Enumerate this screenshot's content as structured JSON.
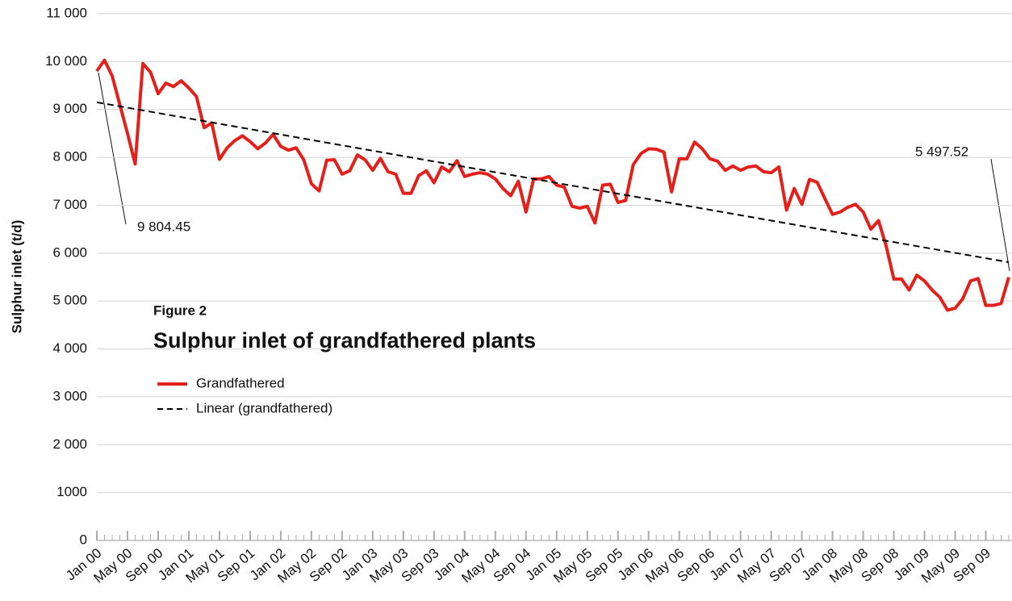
{
  "chart_data": {
    "type": "line",
    "title": "Sulphur inlet of grandfathered plants",
    "subtitle": "Figure 2",
    "y_label": "Sulphur inlet (t/d)",
    "categories": [
      "Jan 00",
      null,
      null,
      null,
      "May 00",
      null,
      null,
      null,
      "Sep 00",
      null,
      null,
      null,
      "Jan 01",
      null,
      null,
      null,
      "May 01",
      null,
      null,
      null,
      "Sep 01",
      null,
      null,
      null,
      "Jan 02",
      null,
      null,
      null,
      "May 02",
      null,
      null,
      null,
      "Sep 02",
      null,
      null,
      null,
      "Jan 03",
      null,
      null,
      null,
      "May 03",
      null,
      null,
      null,
      "Sep 03",
      null,
      null,
      null,
      "Jan 04",
      null,
      null,
      null,
      "May 04",
      null,
      null,
      null,
      "Sep 04",
      null,
      null,
      null,
      "Jan 05",
      null,
      null,
      null,
      "May 05",
      null,
      null,
      null,
      "Sep 05",
      null,
      null,
      null,
      "Jan 06",
      null,
      null,
      null,
      "May 06",
      null,
      null,
      null,
      "Sep 06",
      null,
      null,
      null,
      "Jan 07",
      null,
      null,
      null,
      "May 07",
      null,
      null,
      null,
      "Sep 07",
      null,
      null,
      null,
      "Jan 08",
      null,
      null,
      null,
      "May 08",
      null,
      null,
      null,
      "Sep 08",
      null,
      null,
      null,
      "Jan 09",
      null,
      null,
      null,
      "May 09",
      null,
      null,
      null,
      "Sep 09",
      null,
      null,
      null
    ],
    "series": [
      {
        "name": "Grandfathered",
        "color": "#e3201b",
        "values": [
          9804.45,
          10030,
          9700,
          9100,
          8500,
          7860,
          9960,
          9780,
          9330,
          9550,
          9480,
          9600,
          9450,
          9270,
          8620,
          8720,
          7960,
          8200,
          8350,
          8450,
          8330,
          8180,
          8300,
          8480,
          8230,
          8150,
          8200,
          7950,
          7450,
          7300,
          7940,
          7950,
          7650,
          7720,
          8050,
          7950,
          7730,
          7980,
          7700,
          7650,
          7250,
          7250,
          7620,
          7720,
          7470,
          7800,
          7700,
          7930,
          7600,
          7650,
          7680,
          7650,
          7550,
          7350,
          7200,
          7500,
          6860,
          7550,
          7550,
          7600,
          7420,
          7380,
          6980,
          6940,
          6980,
          6630,
          7420,
          7440,
          7060,
          7100,
          7850,
          8080,
          8180,
          8170,
          8110,
          7280,
          7970,
          7970,
          8320,
          8180,
          7970,
          7920,
          7730,
          7820,
          7730,
          7800,
          7820,
          7700,
          7680,
          7800,
          6900,
          7350,
          7020,
          7540,
          7480,
          7140,
          6810,
          6860,
          6960,
          7020,
          6860,
          6500,
          6680,
          6150,
          5460,
          5460,
          5230,
          5540,
          5420,
          5230,
          5080,
          4810,
          4850,
          5050,
          5420,
          5470,
          4910,
          4910,
          4950,
          5497.52
        ]
      }
    ],
    "trendline": {
      "name": "Linear (grandfathered)",
      "color": "#000000",
      "start": 9150,
      "end": 5810
    },
    "annotations": [
      "9 804.45",
      "5 497.52"
    ],
    "ylim": [
      0,
      11000
    ],
    "yticks": [
      0,
      1000,
      {
        "value": 2000,
        "label": "2 000"
      },
      {
        "value": 3000,
        "label": "3 000"
      },
      {
        "value": 4000,
        "label": "4 000"
      },
      {
        "value": 5000,
        "label": "5 000"
      },
      {
        "value": 6000,
        "label": "6 000"
      },
      {
        "value": 7000,
        "label": "7 000"
      },
      {
        "value": 8000,
        "label": "8 000"
      },
      {
        "value": 9000,
        "label": "9 000"
      },
      {
        "value": 10000,
        "label": "10 000"
      },
      {
        "value": 11000,
        "label": "11 000"
      }
    ],
    "grid": true
  }
}
